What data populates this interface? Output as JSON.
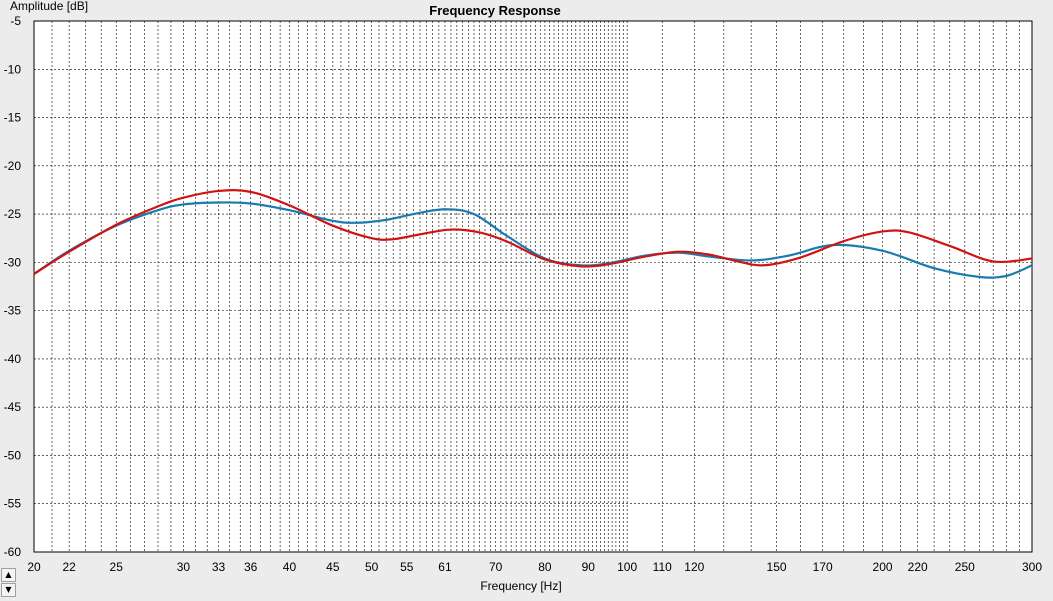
{
  "chart_data": {
    "type": "line",
    "title": "Frequency Response",
    "xlabel": "Frequency [Hz]",
    "ylabel": "Amplitude [dB]",
    "x_scale": "log",
    "xlim": [
      20,
      300
    ],
    "ylim": [
      -60,
      -5
    ],
    "x_ticks": [
      20,
      22,
      25,
      30,
      33,
      36,
      40,
      45,
      50,
      55,
      61,
      70,
      80,
      90,
      100,
      110,
      120,
      150,
      170,
      200,
      220,
      250,
      300
    ],
    "y_ticks": [
      -5,
      -10,
      -15,
      -20,
      -25,
      -30,
      -35,
      -40,
      -45,
      -50,
      -55,
      -60
    ],
    "grid": true,
    "series": [
      {
        "color": "#1a7bb0",
        "x": [
          20,
          22,
          25,
          28,
          30,
          33,
          36,
          40,
          45,
          48,
          52,
          56,
          61,
          66,
          72,
          80,
          88,
          95,
          105,
          115,
          125,
          140,
          155,
          175,
          200,
          230,
          260,
          280,
          300
        ],
        "y": [
          -31.2,
          -28.8,
          -26.2,
          -24.6,
          -24.0,
          -23.8,
          -23.9,
          -24.6,
          -25.7,
          -25.9,
          -25.6,
          -25.0,
          -24.5,
          -25.0,
          -27.2,
          -29.6,
          -30.3,
          -30.1,
          -29.3,
          -29.0,
          -29.4,
          -29.8,
          -29.3,
          -28.2,
          -28.8,
          -30.6,
          -31.5,
          -31.4,
          -30.3
        ]
      },
      {
        "color": "#d01414",
        "x": [
          20,
          22,
          25,
          28,
          30,
          33,
          36,
          40,
          45,
          50,
          53,
          57,
          62,
          67,
          72,
          80,
          88,
          95,
          105,
          115,
          125,
          135,
          145,
          160,
          180,
          200,
          215,
          240,
          270,
          300
        ],
        "y": [
          -31.2,
          -28.9,
          -26.1,
          -24.2,
          -23.3,
          -22.6,
          -22.7,
          -24.1,
          -26.2,
          -27.5,
          -27.6,
          -27.1,
          -26.6,
          -26.9,
          -27.8,
          -29.7,
          -30.4,
          -30.2,
          -29.4,
          -28.9,
          -29.2,
          -29.9,
          -30.3,
          -29.5,
          -27.8,
          -26.8,
          -26.9,
          -28.3,
          -29.9,
          -29.6
        ]
      }
    ]
  },
  "ui": {
    "scroll_up": "▲",
    "scroll_down": "▼"
  }
}
